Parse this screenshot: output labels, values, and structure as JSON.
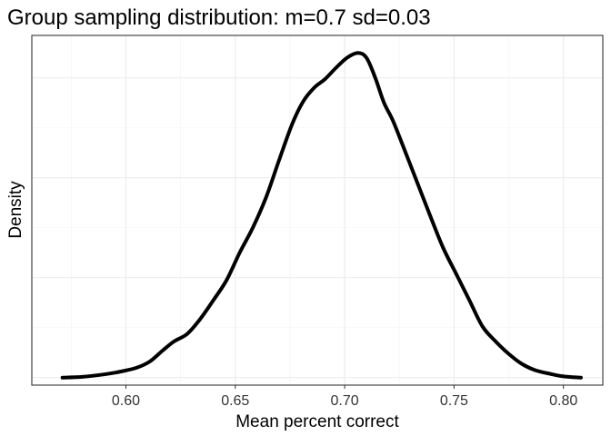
{
  "chart_data": {
    "type": "line",
    "title": "Group sampling distribution: m=0.7 sd=0.03",
    "xlabel": "Mean percent correct",
    "ylabel": "Density",
    "xlim": [
      0.557,
      0.818
    ],
    "ylim": [
      -0.3,
      13.7
    ],
    "x_ticks": [
      0.6,
      0.65,
      0.7,
      0.75,
      0.8
    ],
    "x_tick_labels": [
      "0.60",
      "0.65",
      "0.70",
      "0.75",
      "0.80"
    ],
    "y_tick_labels_shown": false,
    "grid": true,
    "series": [
      {
        "color": "#000000",
        "x": [
          0.571,
          0.58,
          0.59,
          0.598,
          0.605,
          0.611,
          0.617,
          0.622,
          0.628,
          0.634,
          0.64,
          0.646,
          0.652,
          0.658,
          0.664,
          0.67,
          0.676,
          0.681,
          0.686,
          0.691,
          0.696,
          0.701,
          0.706,
          0.71,
          0.714,
          0.718,
          0.722,
          0.727,
          0.733,
          0.739,
          0.745,
          0.751,
          0.757,
          0.763,
          0.769,
          0.775,
          0.781,
          0.787,
          0.794,
          0.8,
          0.808
        ],
        "y": [
          0.0,
          0.03,
          0.13,
          0.25,
          0.4,
          0.65,
          1.1,
          1.45,
          1.75,
          2.35,
          3.1,
          3.9,
          5.0,
          6.0,
          7.2,
          8.7,
          10.15,
          11.05,
          11.6,
          11.95,
          12.4,
          12.8,
          13.0,
          12.8,
          12.0,
          11.0,
          10.3,
          9.2,
          7.85,
          6.5,
          5.2,
          4.15,
          3.1,
          2.05,
          1.45,
          0.95,
          0.55,
          0.3,
          0.15,
          0.05,
          0.0
        ]
      }
    ]
  }
}
